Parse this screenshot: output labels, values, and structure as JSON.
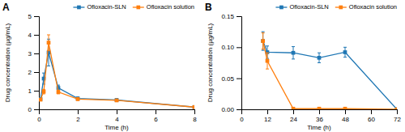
{
  "chart_data": [
    {
      "type": "line",
      "title": "A",
      "xlabel": "Time (h)",
      "ylabel": "Drug concentration (µg/mL)",
      "x": [
        0.083,
        0.25,
        0.5,
        1.0,
        2.0,
        4.0,
        8.0
      ],
      "series": [
        {
          "name": "Ofloxacin-SLN",
          "marker": "square",
          "line_style": "solid",
          "values": [
            0.55,
            1.65,
            3.05,
            1.15,
            0.58,
            0.5,
            0.12
          ],
          "errors": [
            0.08,
            0.3,
            0.72,
            0.15,
            0.08,
            0.07,
            0.03
          ]
        },
        {
          "name": "Ofloxacin solution",
          "marker": "square",
          "line_style": "solid",
          "values": [
            0.52,
            0.95,
            3.58,
            0.93,
            0.55,
            0.48,
            0.12
          ],
          "errors": [
            0.06,
            0.12,
            0.42,
            0.1,
            0.07,
            0.06,
            0.03
          ]
        }
      ],
      "xlim": [
        0,
        8
      ],
      "ylim": [
        0,
        5
      ],
      "xticks": [
        0,
        2,
        4,
        6,
        8
      ],
      "yticks": [
        0,
        1,
        2,
        3,
        4,
        5
      ],
      "grid": false,
      "legend": "upper right"
    },
    {
      "type": "line",
      "title": "B",
      "xlabel": "Time (h)",
      "ylabel": "Drug concentration (µg/mL)",
      "x": [
        10,
        12,
        24,
        36,
        48,
        72
      ],
      "series": [
        {
          "name": "Ofloxacin-SLN",
          "marker": "square",
          "line_style": "solid",
          "values": [
            0.11,
            0.092,
            0.091,
            0.083,
            0.092,
            0.0
          ],
          "errors": [
            0.015,
            0.01,
            0.01,
            0.008,
            0.008,
            0.0
          ]
        },
        {
          "name": "Ofloxacin solution",
          "marker": "square",
          "line_style": "solid",
          "values": [
            0.11,
            0.078,
            0.001,
            0.001,
            0.001,
            0.0
          ],
          "errors": [
            0.013,
            0.013,
            0.001,
            0.001,
            0.001,
            0.0
          ]
        }
      ],
      "xlim": [
        0,
        72
      ],
      "ylim": [
        0.0,
        0.15
      ],
      "xticks": [
        0,
        12,
        24,
        36,
        48,
        60,
        72
      ],
      "yticks": [
        {
          "value": 0.0,
          "label": "0.00"
        },
        0.05,
        {
          "value": 0.1,
          "label": "0.10"
        },
        0.15
      ],
      "grid": false,
      "legend": "upper right"
    }
  ]
}
